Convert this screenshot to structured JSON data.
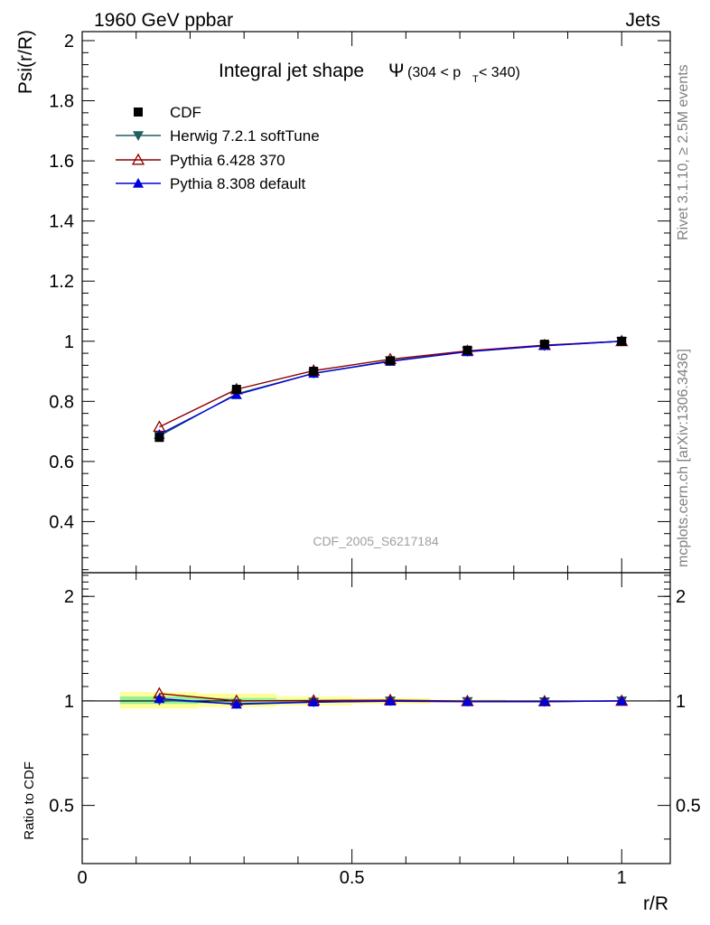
{
  "header": {
    "left": "1960 GeV ppbar",
    "right": "Jets"
  },
  "side_labels": {
    "rivet": "Rivet 3.1.10, ≥ 2.5M events",
    "mcplots": "mcplots.cern.ch [arXiv:1306.3436]"
  },
  "watermark": "CDF_2005_S6217184",
  "title": {
    "main": "Integral jet shape",
    "symbol": "Ψ",
    "range_pre": "(304 < p",
    "range_sub": "T",
    "range_post": " < 340)"
  },
  "colors": {
    "cdf": "#000000",
    "herwig": "#1f5f5f",
    "pythia6": "#8b0000",
    "pythia8": "#0000dd",
    "band_outer": "#ffff99",
    "band_inner": "#99ee99"
  },
  "chart_data": [
    {
      "type": "line",
      "panel": "main",
      "ylabel": "Psi(r/R)",
      "xlim": [
        0,
        1.09
      ],
      "ylim": [
        0.23,
        2.03
      ],
      "x_ticks": [
        0,
        0.5,
        1
      ],
      "y_ticks": [
        0.4,
        0.6,
        0.8,
        1,
        1.2,
        1.4,
        1.6,
        1.8,
        2
      ],
      "y_tick_labels": [
        "0.4",
        "0.6",
        "0.8",
        "1",
        "1.2",
        "1.4",
        "1.6",
        "1.8",
        "2"
      ],
      "legend": {
        "placement": "top-left"
      },
      "x": [
        0.143,
        0.286,
        0.429,
        0.571,
        0.714,
        0.857,
        1.0
      ],
      "series": [
        {
          "name": "CDF",
          "kind": "data",
          "marker": "square",
          "values": [
            0.68,
            0.84,
            0.9,
            0.935,
            0.97,
            0.99,
            1.0
          ]
        },
        {
          "name": "Herwig 7.2.1 softTune",
          "kind": "mc",
          "marker": "triangle-down",
          "values": [
            0.685,
            0.825,
            0.893,
            0.935,
            0.966,
            0.985,
            1.0
          ]
        },
        {
          "name": "Pythia 6.428 370",
          "kind": "mc",
          "marker": "triangle-up-open",
          "values": [
            0.715,
            0.84,
            0.902,
            0.94,
            0.968,
            0.987,
            1.0
          ]
        },
        {
          "name": "Pythia 8.308 default",
          "kind": "mc",
          "marker": "triangle-up",
          "values": [
            0.69,
            0.822,
            0.893,
            0.933,
            0.965,
            0.985,
            1.0
          ]
        }
      ]
    },
    {
      "type": "line",
      "panel": "ratio",
      "xlabel": "r/R",
      "ylabel": "Ratio to CDF",
      "xlim": [
        0,
        1.09
      ],
      "ylim": [
        0.34,
        2.34
      ],
      "x_ticks": [
        0,
        0.5,
        1
      ],
      "x_tick_labels": [
        "0",
        "0.5",
        "1"
      ],
      "y_ticks": [
        0.5,
        1,
        2
      ],
      "y_tick_labels": [
        "0.5",
        "1",
        "2"
      ],
      "x": [
        0.143,
        0.286,
        0.429,
        0.571,
        0.714,
        0.857,
        1.0
      ],
      "bands": [
        {
          "x_range": [
            0.07,
            0.215
          ],
          "outer": [
            0.95,
            1.06
          ],
          "inner": [
            0.98,
            1.03
          ]
        },
        {
          "x_range": [
            0.215,
            0.36
          ],
          "outer": [
            0.96,
            1.05
          ],
          "inner": [
            0.985,
            1.02
          ]
        },
        {
          "x_range": [
            0.36,
            0.5
          ],
          "outer": [
            0.97,
            1.03
          ],
          "inner": [
            0.99,
            1.01
          ]
        },
        {
          "x_range": [
            0.5,
            0.645
          ],
          "outer": [
            0.98,
            1.02
          ],
          "inner": [
            0.993,
            1.008
          ]
        },
        {
          "x_range": [
            0.645,
            0.785
          ],
          "outer": [
            0.99,
            1.01
          ],
          "inner": [
            0.996,
            1.004
          ]
        },
        {
          "x_range": [
            0.785,
            0.93
          ],
          "outer": [
            0.995,
            1.005
          ],
          "inner": [
            0.998,
            1.002
          ]
        },
        {
          "x_range": [
            0.93,
            1.0
          ],
          "outer": [
            0.998,
            1.002
          ],
          "inner": [
            0.999,
            1.001
          ]
        }
      ],
      "series": [
        {
          "name": "Herwig 7.2.1 softTune",
          "marker": "triangle-down",
          "values": [
            1.005,
            0.982,
            0.992,
            1.0,
            0.996,
            0.995,
            1.0
          ]
        },
        {
          "name": "Pythia 6.428 370",
          "marker": "triangle-up-open",
          "values": [
            1.05,
            1.0,
            1.002,
            1.005,
            0.998,
            0.997,
            1.0
          ]
        },
        {
          "name": "Pythia 8.308 default",
          "marker": "triangle-up",
          "values": [
            1.015,
            0.978,
            0.992,
            0.998,
            0.995,
            0.995,
            1.0
          ]
        }
      ]
    }
  ]
}
